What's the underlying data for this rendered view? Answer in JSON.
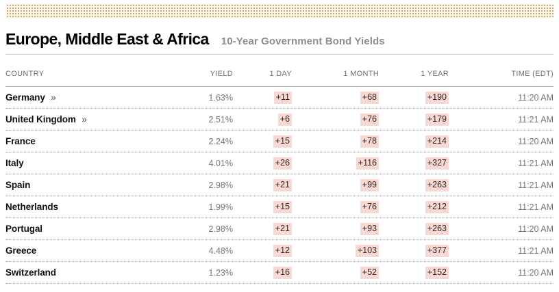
{
  "page": {
    "title": "Europe, Middle East & Africa",
    "subtitle": "10-Year Government Bond Yields"
  },
  "table": {
    "columns": [
      "COUNTRY",
      "YIELD",
      "1 DAY",
      "1 MONTH",
      "1 YEAR",
      "TIME (EDT)"
    ],
    "rows": [
      {
        "country": "Germany",
        "arrow": "»",
        "yield": "1.63%",
        "day": "+11",
        "month": "+68",
        "year": "+190",
        "time": "11:20 AM"
      },
      {
        "country": "United Kingdom",
        "arrow": "»",
        "yield": "2.51%",
        "day": "+6",
        "month": "+76",
        "year": "+179",
        "time": "11:21 AM"
      },
      {
        "country": "France",
        "arrow": "",
        "yield": "2.24%",
        "day": "+15",
        "month": "+78",
        "year": "+214",
        "time": "11:20 AM"
      },
      {
        "country": "Italy",
        "arrow": "",
        "yield": "4.01%",
        "day": "+26",
        "month": "+116",
        "year": "+327",
        "time": "11:21 AM"
      },
      {
        "country": "Spain",
        "arrow": "",
        "yield": "2.98%",
        "day": "+21",
        "month": "+99",
        "year": "+263",
        "time": "11:21 AM"
      },
      {
        "country": "Netherlands",
        "arrow": "",
        "yield": "1.99%",
        "day": "+15",
        "month": "+76",
        "year": "+212",
        "time": "11:21 AM"
      },
      {
        "country": "Portugal",
        "arrow": "",
        "yield": "2.98%",
        "day": "+21",
        "month": "+93",
        "year": "+263",
        "time": "11:20 AM"
      },
      {
        "country": "Greece",
        "arrow": "",
        "yield": "4.48%",
        "day": "+12",
        "month": "+103",
        "year": "+377",
        "time": "11:21 AM"
      },
      {
        "country": "Switzerland",
        "arrow": "",
        "yield": "1.23%",
        "day": "+16",
        "month": "+52",
        "year": "+152",
        "time": "11:20 AM"
      }
    ]
  },
  "colors": {
    "badge_background": "#f9d8d3",
    "strip_dot": "#c69f5e",
    "strip_background": "#fcf5ea",
    "subtitle_gray": "#8d8d8d",
    "value_gray": "#767676"
  }
}
